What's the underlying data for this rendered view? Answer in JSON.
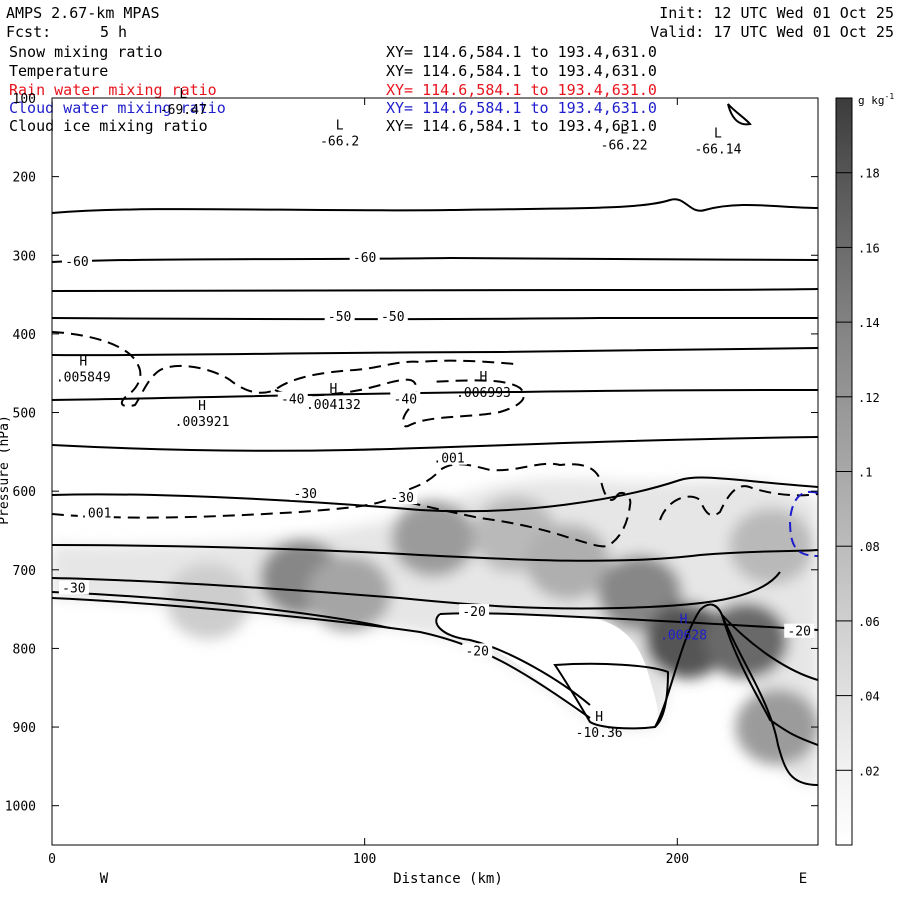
{
  "header": {
    "model": "AMPS 2.67-km MPAS",
    "forecast_label": "Fcst:",
    "forecast_value": "5 h",
    "init": "Init: 12 UTC Wed 01 Oct 25",
    "valid": "Valid: 17 UTC Wed 01 Oct 25"
  },
  "fields": [
    {
      "name": "Snow mixing ratio",
      "xy": "XY= 114.6,584.1 to 193.4,631.0",
      "color": "#000000"
    },
    {
      "name": "Temperature",
      "xy": "XY= 114.6,584.1 to 193.4,631.0",
      "color": "#000000"
    },
    {
      "name": "Rain water mixing ratio",
      "xy": "XY= 114.6,584.1 to 193.4,631.0",
      "color": "#e8141e"
    },
    {
      "name": "Cloud water mixing ratio",
      "xy": "XY= 114.6,584.1 to 193.4,631.0",
      "color": "#1e1ecc"
    },
    {
      "name": "Cloud ice mixing ratio",
      "xy": "XY= 114.6,584.1 to 193.4,631.0",
      "color": "#000000"
    }
  ],
  "chart_data": {
    "type": "heatmap",
    "description_type": "vertical cross-section with shaded snow mixing ratio and contour overlays",
    "xlabel": "Distance (km)",
    "ylabel": "Pressure (hPa)",
    "xlim": [
      0,
      245
    ],
    "ylim": [
      1050,
      100
    ],
    "x_ticks": [
      0,
      100,
      200
    ],
    "y_ticks": [
      100,
      200,
      300,
      400,
      500,
      600,
      700,
      800,
      900,
      1000
    ],
    "x_endpoints": {
      "left": "W",
      "right": "E"
    },
    "colorbar": {
      "unit": "g kg",
      "unit_exp": "-1",
      "ticks": [
        ".02",
        ".04",
        ".06",
        ".08",
        ".1",
        ".12",
        ".14",
        ".16",
        ".18"
      ],
      "tick_values": [
        0.02,
        0.04,
        0.06,
        0.08,
        0.1,
        0.12,
        0.14,
        0.16,
        0.18
      ],
      "max": 0.2
    },
    "shading_blobs": [
      {
        "x": 80,
        "p": 710,
        "v": 0.12
      },
      {
        "x": 95,
        "p": 730,
        "v": 0.09
      },
      {
        "x": 122,
        "p": 660,
        "v": 0.1
      },
      {
        "x": 148,
        "p": 655,
        "v": 0.07
      },
      {
        "x": 165,
        "p": 690,
        "v": 0.08
      },
      {
        "x": 188,
        "p": 730,
        "v": 0.12
      },
      {
        "x": 203,
        "p": 790,
        "v": 0.17
      },
      {
        "x": 222,
        "p": 790,
        "v": 0.15
      },
      {
        "x": 232,
        "p": 900,
        "v": 0.1
      },
      {
        "x": 230,
        "p": 670,
        "v": 0.07
      },
      {
        "x": 50,
        "p": 740,
        "v": 0.05
      }
    ],
    "temperature_contours": [
      {
        "p": 245,
        "label": null
      },
      {
        "p": 305,
        "label": "-60"
      },
      {
        "p": 345,
        "label": null
      },
      {
        "p": 380,
        "label": "-50"
      },
      {
        "p": 420,
        "label": null
      },
      {
        "p": 480,
        "label": "-40"
      },
      {
        "p": 540,
        "label": null
      },
      {
        "p": 605,
        "label": "-30"
      }
    ],
    "temperature_labels": [
      {
        "x": 8,
        "p": 310,
        "text": "-60"
      },
      {
        "x": 100,
        "p": 305,
        "text": "-60"
      },
      {
        "x": 92,
        "p": 380,
        "text": "-50"
      },
      {
        "x": 109,
        "p": 380,
        "text": "-50"
      },
      {
        "x": 77,
        "p": 485,
        "text": "-40"
      },
      {
        "x": 113,
        "p": 485,
        "text": "-40"
      },
      {
        "x": 81,
        "p": 605,
        "text": "-30"
      },
      {
        "x": 112,
        "p": 610,
        "text": "-30"
      },
      {
        "x": 7,
        "p": 725,
        "text": "-30"
      },
      {
        "x": 135,
        "p": 755,
        "text": "-20"
      },
      {
        "x": 136,
        "p": 805,
        "text": "-20"
      },
      {
        "x": 239,
        "p": 780,
        "text": "-20"
      }
    ],
    "cloud_ice_labels": [
      {
        "x": 127,
        "p": 560,
        "text": ".001"
      },
      {
        "x": 14,
        "p": 630,
        "text": ".001"
      }
    ],
    "extrema": [
      {
        "kind": "L",
        "x": 92,
        "p": 140,
        "value": "-66.2",
        "color": "#000000"
      },
      {
        "kind": "L",
        "x": 183,
        "p": 145,
        "value": "-66.22",
        "color": "#000000"
      },
      {
        "kind": "L",
        "x": 213,
        "p": 150,
        "value": "-66.14",
        "color": "#000000"
      },
      {
        "kind": "L",
        "x": 42,
        "p": 100,
        "value": "-69.47",
        "color": "#000000"
      },
      {
        "kind": "H",
        "x": 10,
        "p": 440,
        "value": ".005849",
        "color": "#000000"
      },
      {
        "kind": "H",
        "x": 48,
        "p": 497,
        "value": ".003921",
        "color": "#000000"
      },
      {
        "kind": "H",
        "x": 90,
        "p": 475,
        "value": ".004132",
        "color": "#000000"
      },
      {
        "kind": "H",
        "x": 138,
        "p": 460,
        "value": ".006993",
        "color": "#000000"
      },
      {
        "kind": "H",
        "x": 202,
        "p": 768,
        "value": ".00628",
        "color": "#1e1ecc"
      },
      {
        "kind": "H",
        "x": 175,
        "p": 892,
        "value": "-10.36",
        "color": "#000000"
      }
    ]
  }
}
